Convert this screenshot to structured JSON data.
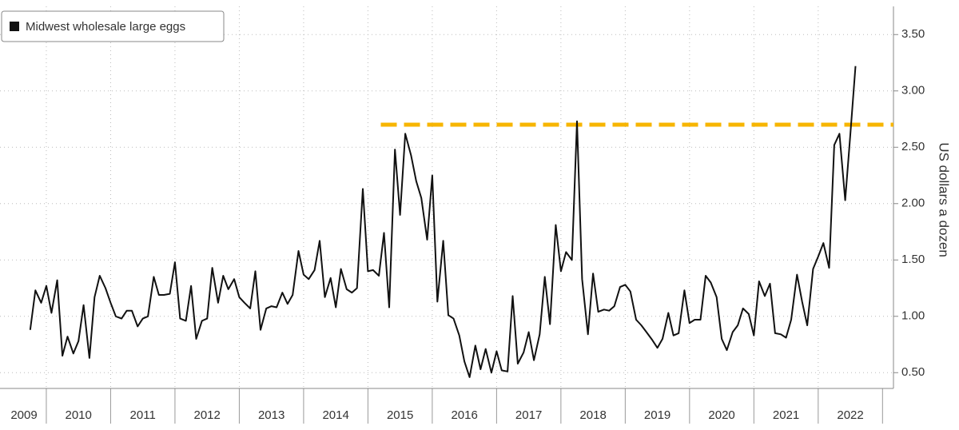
{
  "chart_data": {
    "type": "line",
    "series": [
      {
        "name": "Midwest wholesale large eggs",
        "color": "#111111",
        "x": [
          2009.75,
          2009.83,
          2009.92,
          2010.0,
          2010.08,
          2010.17,
          2010.25,
          2010.33,
          2010.42,
          2010.5,
          2010.58,
          2010.67,
          2010.75,
          2010.83,
          2010.92,
          2011.0,
          2011.08,
          2011.17,
          2011.25,
          2011.33,
          2011.42,
          2011.5,
          2011.58,
          2011.67,
          2011.75,
          2011.83,
          2011.92,
          2012.0,
          2012.08,
          2012.17,
          2012.25,
          2012.33,
          2012.42,
          2012.5,
          2012.58,
          2012.67,
          2012.75,
          2012.83,
          2012.92,
          2013.0,
          2013.08,
          2013.17,
          2013.25,
          2013.33,
          2013.42,
          2013.5,
          2013.58,
          2013.67,
          2013.75,
          2013.83,
          2013.92,
          2014.0,
          2014.08,
          2014.17,
          2014.25,
          2014.33,
          2014.42,
          2014.5,
          2014.58,
          2014.67,
          2014.75,
          2014.83,
          2014.92,
          2015.0,
          2015.08,
          2015.17,
          2015.25,
          2015.33,
          2015.42,
          2015.5,
          2015.58,
          2015.67,
          2015.75,
          2015.83,
          2015.92,
          2016.0,
          2016.08,
          2016.17,
          2016.25,
          2016.33,
          2016.42,
          2016.5,
          2016.58,
          2016.67,
          2016.75,
          2016.83,
          2016.92,
          2017.0,
          2017.08,
          2017.17,
          2017.25,
          2017.33,
          2017.42,
          2017.5,
          2017.58,
          2017.67,
          2017.75,
          2017.83,
          2017.92,
          2018.0,
          2018.08,
          2018.17,
          2018.25,
          2018.33,
          2018.42,
          2018.5,
          2018.58,
          2018.67,
          2018.75,
          2018.83,
          2018.92,
          2019.0,
          2019.08,
          2019.17,
          2019.25,
          2019.33,
          2019.42,
          2019.5,
          2019.58,
          2019.67,
          2019.75,
          2019.83,
          2019.92,
          2020.0,
          2020.08,
          2020.17,
          2020.25,
          2020.33,
          2020.42,
          2020.5,
          2020.58,
          2020.67,
          2020.75,
          2020.83,
          2020.92,
          2021.0,
          2021.08,
          2021.17,
          2021.25,
          2021.33,
          2021.42,
          2021.5,
          2021.58,
          2021.67,
          2021.75,
          2021.83,
          2021.92,
          2022.0,
          2022.08,
          2022.17,
          2022.25,
          2022.33,
          2022.42,
          2022.5,
          2022.58
        ],
        "values": [
          0.88,
          1.23,
          1.12,
          1.27,
          1.03,
          1.32,
          0.65,
          0.82,
          0.67,
          0.78,
          1.1,
          0.63,
          1.17,
          1.36,
          1.25,
          1.12,
          1.0,
          0.98,
          1.05,
          1.05,
          0.91,
          0.98,
          1.0,
          1.35,
          1.19,
          1.19,
          1.2,
          1.48,
          0.98,
          0.96,
          1.27,
          0.8,
          0.96,
          0.98,
          1.43,
          1.12,
          1.36,
          1.24,
          1.33,
          1.17,
          1.12,
          1.07,
          1.4,
          0.88,
          1.07,
          1.09,
          1.08,
          1.21,
          1.11,
          1.19,
          1.58,
          1.37,
          1.33,
          1.41,
          1.67,
          1.17,
          1.34,
          1.08,
          1.42,
          1.24,
          1.21,
          1.25,
          2.13,
          1.4,
          1.41,
          1.36,
          1.74,
          1.08,
          2.48,
          1.9,
          2.62,
          2.43,
          2.2,
          2.05,
          1.68,
          2.25,
          1.13,
          1.67,
          1.01,
          0.98,
          0.83,
          0.6,
          0.46,
          0.74,
          0.53,
          0.71,
          0.5,
          0.69,
          0.52,
          0.51,
          1.18,
          0.58,
          0.68,
          0.86,
          0.61,
          0.84,
          1.35,
          0.93,
          1.81,
          1.4,
          1.57,
          1.5,
          2.73,
          1.33,
          0.84,
          1.38,
          1.04,
          1.06,
          1.05,
          1.09,
          1.26,
          1.28,
          1.22,
          0.97,
          0.92,
          0.86,
          0.79,
          0.72,
          0.8,
          1.03,
          0.83,
          0.85,
          1.23,
          0.94,
          0.97,
          0.97,
          1.36,
          1.3,
          1.17,
          0.8,
          0.7,
          0.86,
          0.92,
          1.07,
          1.02,
          0.83,
          1.31,
          1.18,
          1.29,
          0.85,
          0.84,
          0.81,
          0.97,
          1.37,
          1.13,
          0.92,
          1.42,
          1.53,
          1.65,
          1.43,
          2.52,
          2.62,
          2.03,
          2.62,
          3.22
        ]
      }
    ],
    "hline": {
      "y": 2.7,
      "xmin": 2015.2,
      "color": "#f7b500"
    },
    "ylabel": "US dollars a dozen",
    "xlim": [
      2009.28,
      2023.17
    ],
    "ylim": [
      0.36,
      3.75
    ],
    "xticks": [
      2009,
      2010,
      2011,
      2012,
      2013,
      2014,
      2015,
      2016,
      2017,
      2018,
      2019,
      2020,
      2021,
      2022
    ],
    "yticks": [
      {
        "value": 0.5,
        "label": "0.50"
      },
      {
        "value": 1,
        "label": "1.00"
      },
      {
        "value": 1.5,
        "label": "1.50"
      },
      {
        "value": 2,
        "label": "2.00"
      },
      {
        "value": 2.5,
        "label": "2.50"
      },
      {
        "value": 3,
        "label": "3.00"
      },
      {
        "value": 3.5,
        "label": "3.50"
      }
    ],
    "grid": true,
    "legend": "upper left"
  }
}
